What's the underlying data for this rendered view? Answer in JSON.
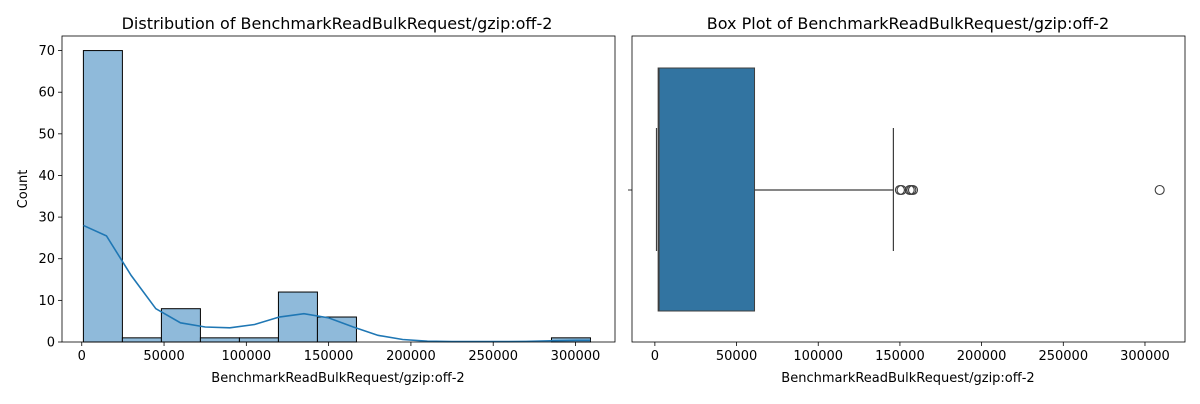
{
  "colors": {
    "hist_fill": "#8fbada",
    "hist_edge": "#000000",
    "kde_line": "#1f77b4",
    "box_fill": "#3274a1",
    "box_line": "#3f3f3f"
  },
  "chart_data": [
    {
      "type": "histogram",
      "title": "Distribution of BenchmarkReadBulkRequest/gzip:off-2",
      "xlabel": "BenchmarkReadBulkRequest/gzip:off-2",
      "ylabel": "Count",
      "xlim": [
        -12000,
        324000
      ],
      "ylim": [
        0,
        73.5
      ],
      "xticks": [
        0,
        50000,
        100000,
        150000,
        200000,
        250000,
        300000
      ],
      "yticks": [
        0,
        10,
        20,
        30,
        40,
        50,
        60,
        70
      ],
      "bin_edges": [
        1000,
        24700,
        48400,
        72100,
        95800,
        119500,
        143200,
        166900,
        190600,
        214300,
        238000,
        261700,
        285400,
        309100
      ],
      "counts": [
        70,
        1,
        8,
        1,
        1,
        12,
        6,
        0,
        0,
        0,
        0,
        0,
        1
      ],
      "kde": {
        "x": [
          1000,
          15000,
          30000,
          45000,
          60000,
          75000,
          90000,
          105000,
          120000,
          135000,
          150000,
          165000,
          180000,
          195000,
          210000,
          225000,
          240000,
          255000,
          270000,
          285000,
          300000,
          309000
        ],
        "y": [
          28,
          25.5,
          16,
          8,
          4.6,
          3.6,
          3.4,
          4.2,
          6,
          6.8,
          5.8,
          3.6,
          1.6,
          0.6,
          0.2,
          0.1,
          0.1,
          0.1,
          0.15,
          0.3,
          0.4,
          0.4
        ]
      },
      "grid": false
    },
    {
      "type": "box",
      "title": "Box Plot of BenchmarkReadBulkRequest/gzip:off-2",
      "xlabel": "BenchmarkReadBulkRequest/gzip:off-2",
      "xlim": [
        -14000,
        324500
      ],
      "xticks": [
        0,
        50000,
        100000,
        150000,
        200000,
        250000,
        300000
      ],
      "q1": 2000,
      "median": 2500,
      "q3": 61000,
      "whisker_low": 1000,
      "whisker_high": 146000,
      "outliers": [
        150000,
        151000,
        156000,
        157000,
        158000,
        309000
      ],
      "grid": false
    }
  ]
}
